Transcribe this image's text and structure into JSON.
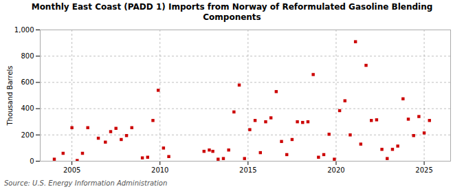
{
  "chart_data": {
    "type": "scatter",
    "title": "Monthly East Coast (PADD 1) Imports from Norway of Reformulated Gasoline Blending Components",
    "ylabel": "Thousand Barrels",
    "annotations": [
      "Source: U.S. Energy Information Administration"
    ],
    "color": "#cc0000",
    "marker": "square",
    "grid": true,
    "xlim": [
      2003.2,
      2026.5
    ],
    "xticks": [
      2005,
      2010,
      2015,
      2020,
      2025
    ],
    "ylim": [
      0,
      1000
    ],
    "yticks": [
      0,
      200,
      400,
      600,
      800,
      {
        "value": 1000,
        "label": "1,000"
      }
    ],
    "x": [
      2004.0,
      2004.5,
      2005.0,
      2005.3,
      2005.6,
      2005.9,
      2006.5,
      2006.9,
      2007.2,
      2007.5,
      2007.8,
      2008.1,
      2008.4,
      2009.0,
      2009.3,
      2009.6,
      2009.9,
      2010.2,
      2010.5,
      2012.5,
      2012.8,
      2013.0,
      2013.3,
      2013.6,
      2013.9,
      2014.2,
      2014.5,
      2014.8,
      2015.1,
      2015.4,
      2015.7,
      2016.0,
      2016.3,
      2016.6,
      2016.9,
      2017.2,
      2017.5,
      2017.8,
      2018.1,
      2018.4,
      2018.7,
      2019.0,
      2019.3,
      2019.6,
      2019.9,
      2020.2,
      2020.5,
      2020.8,
      2021.1,
      2021.4,
      2021.7,
      2022.0,
      2022.3,
      2022.6,
      2022.9,
      2023.2,
      2023.5,
      2023.8,
      2024.1,
      2024.4,
      2024.7,
      2025.0,
      2025.3
    ],
    "values": [
      15,
      60,
      255,
      5,
      60,
      255,
      175,
      145,
      225,
      250,
      165,
      195,
      255,
      25,
      30,
      310,
      540,
      100,
      35,
      75,
      85,
      75,
      15,
      20,
      85,
      375,
      580,
      20,
      240,
      310,
      65,
      300,
      330,
      530,
      150,
      50,
      165,
      300,
      295,
      300,
      660,
      30,
      50,
      205,
      15,
      385,
      460,
      200,
      910,
      130,
      730,
      310,
      315,
      90,
      20,
      90,
      115,
      475,
      320,
      195,
      340,
      215,
      310
    ]
  }
}
